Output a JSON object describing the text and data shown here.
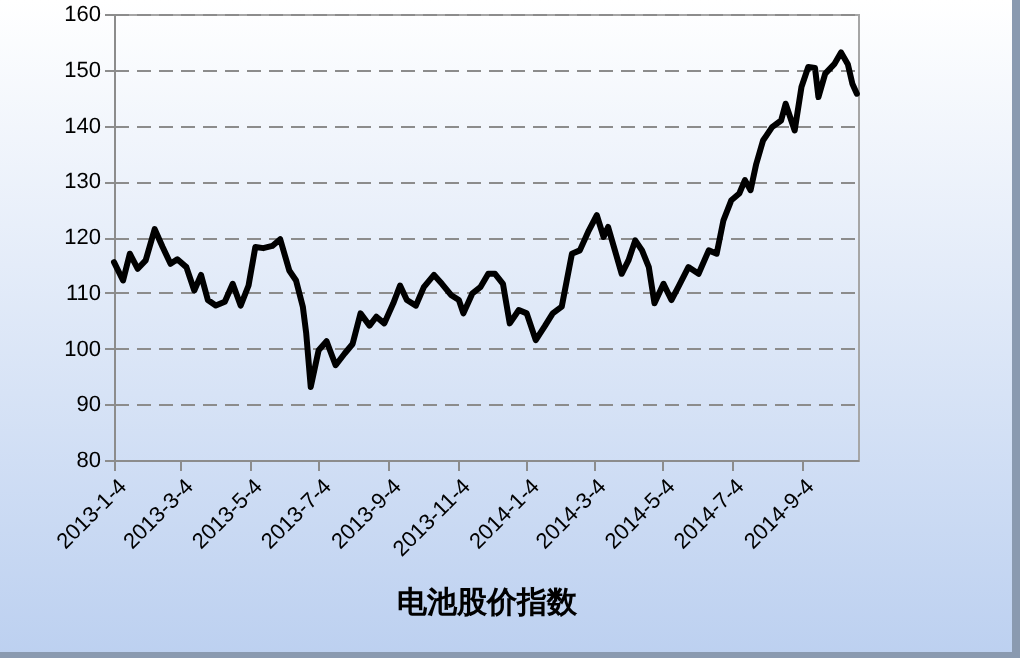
{
  "chart_data": {
    "type": "line",
    "xlabel": "电池股价指数",
    "x": [
      "2013-01-04",
      "2013-01-12",
      "2013-01-18",
      "2013-01-25",
      "2013-02-01",
      "2013-02-09",
      "2013-02-16",
      "2013-02-23",
      "2013-03-01",
      "2013-03-09",
      "2013-03-16",
      "2013-03-22",
      "2013-03-28",
      "2013-04-04",
      "2013-04-12",
      "2013-04-19",
      "2013-04-26",
      "2013-05-03",
      "2013-05-09",
      "2013-05-16",
      "2013-05-24",
      "2013-05-31",
      "2013-06-08",
      "2013-06-14",
      "2013-06-20",
      "2013-06-23",
      "2013-06-27",
      "2013-07-04",
      "2013-07-11",
      "2013-07-19",
      "2013-07-27",
      "2013-08-03",
      "2013-08-10",
      "2013-08-18",
      "2013-08-24",
      "2013-08-31",
      "2013-09-08",
      "2013-09-14",
      "2013-09-20",
      "2013-09-28",
      "2013-10-05",
      "2013-10-14",
      "2013-10-21",
      "2013-10-29",
      "2013-11-05",
      "2013-11-09",
      "2013-11-17",
      "2013-11-24",
      "2013-12-01",
      "2013-12-07",
      "2013-12-14",
      "2013-12-20",
      "2013-12-28",
      "2014-01-04",
      "2014-01-12",
      "2014-01-20",
      "2014-01-27",
      "2014-02-04",
      "2014-02-13",
      "2014-02-20",
      "2014-02-28",
      "2014-03-07",
      "2014-03-13",
      "2014-03-17",
      "2014-03-23",
      "2014-03-29",
      "2014-04-04",
      "2014-04-10",
      "2014-04-16",
      "2014-04-22",
      "2014-04-27",
      "2014-05-05",
      "2014-05-12",
      "2014-05-18",
      "2014-05-27",
      "2014-06-05",
      "2014-06-14",
      "2014-06-21",
      "2014-06-27",
      "2014-07-04",
      "2014-07-11",
      "2014-07-16",
      "2014-07-21",
      "2014-07-26",
      "2014-08-01",
      "2014-08-09",
      "2014-08-17",
      "2014-08-21",
      "2014-08-29",
      "2014-09-04",
      "2014-09-10",
      "2014-09-16",
      "2014-09-19",
      "2014-09-25",
      "2014-10-03",
      "2014-10-09",
      "2014-10-15",
      "2014-10-19",
      "2014-10-23"
    ],
    "series": [
      {
        "color": "#000000",
        "values": [
          115.5,
          112.2,
          117,
          114.3,
          115.8,
          121.4,
          118.2,
          115.2,
          116,
          114.6,
          110.4,
          113.2,
          108.7,
          107.7,
          108.4,
          111.6,
          107.7,
          111.3,
          118.2,
          118,
          118.4,
          119.6,
          114,
          112.2,
          107.5,
          102.7,
          93.1,
          99.7,
          101.3,
          97,
          99.1,
          100.8,
          106.3,
          104.1,
          105.7,
          104.5,
          108.1,
          111.3,
          108.7,
          107.7,
          111,
          113.2,
          111.6,
          109.6,
          108.7,
          106.3,
          109.9,
          111,
          113.4,
          113.4,
          111.6,
          104.5,
          106.9,
          106.3,
          101.5,
          104,
          106.3,
          107.5,
          117,
          117.6,
          121.2,
          123.9,
          120,
          121.8,
          117.6,
          113.4,
          115.8,
          119.4,
          117.6,
          114.6,
          108.1,
          111.6,
          108.7,
          111,
          114.6,
          113.4,
          117.6,
          117,
          123,
          126.6,
          127.8,
          130.2,
          128.4,
          133.1,
          137.3,
          139.7,
          140.9,
          143.9,
          139.1,
          146.9,
          150.5,
          150.3,
          145.1,
          149.3,
          151,
          153.1,
          151,
          147.5,
          145.7
        ]
      }
    ],
    "xlim": [
      "2013-01-04",
      "2014-10-24"
    ],
    "xticks": [
      {
        "value": "2013-01-04",
        "label": "2013-1-4"
      },
      {
        "value": "2013-03-04",
        "label": "2013-3-4"
      },
      {
        "value": "2013-05-04",
        "label": "2013-5-4"
      },
      {
        "value": "2013-07-04",
        "label": "2013-7-4"
      },
      {
        "value": "2013-09-04",
        "label": "2013-9-4"
      },
      {
        "value": "2013-11-04",
        "label": "2013-11-4"
      },
      {
        "value": "2014-01-04",
        "label": "2014-1-4"
      },
      {
        "value": "2014-03-04",
        "label": "2014-3-4"
      },
      {
        "value": "2014-05-04",
        "label": "2014-5-4"
      },
      {
        "value": "2014-07-04",
        "label": "2014-7-4"
      },
      {
        "value": "2014-09-04",
        "label": "2014-9-4"
      }
    ],
    "ylim": [
      80,
      160
    ],
    "yticks": [
      80,
      90,
      100,
      110,
      120,
      130,
      140,
      150,
      160
    ],
    "grid": "y",
    "line_style": "solid"
  }
}
